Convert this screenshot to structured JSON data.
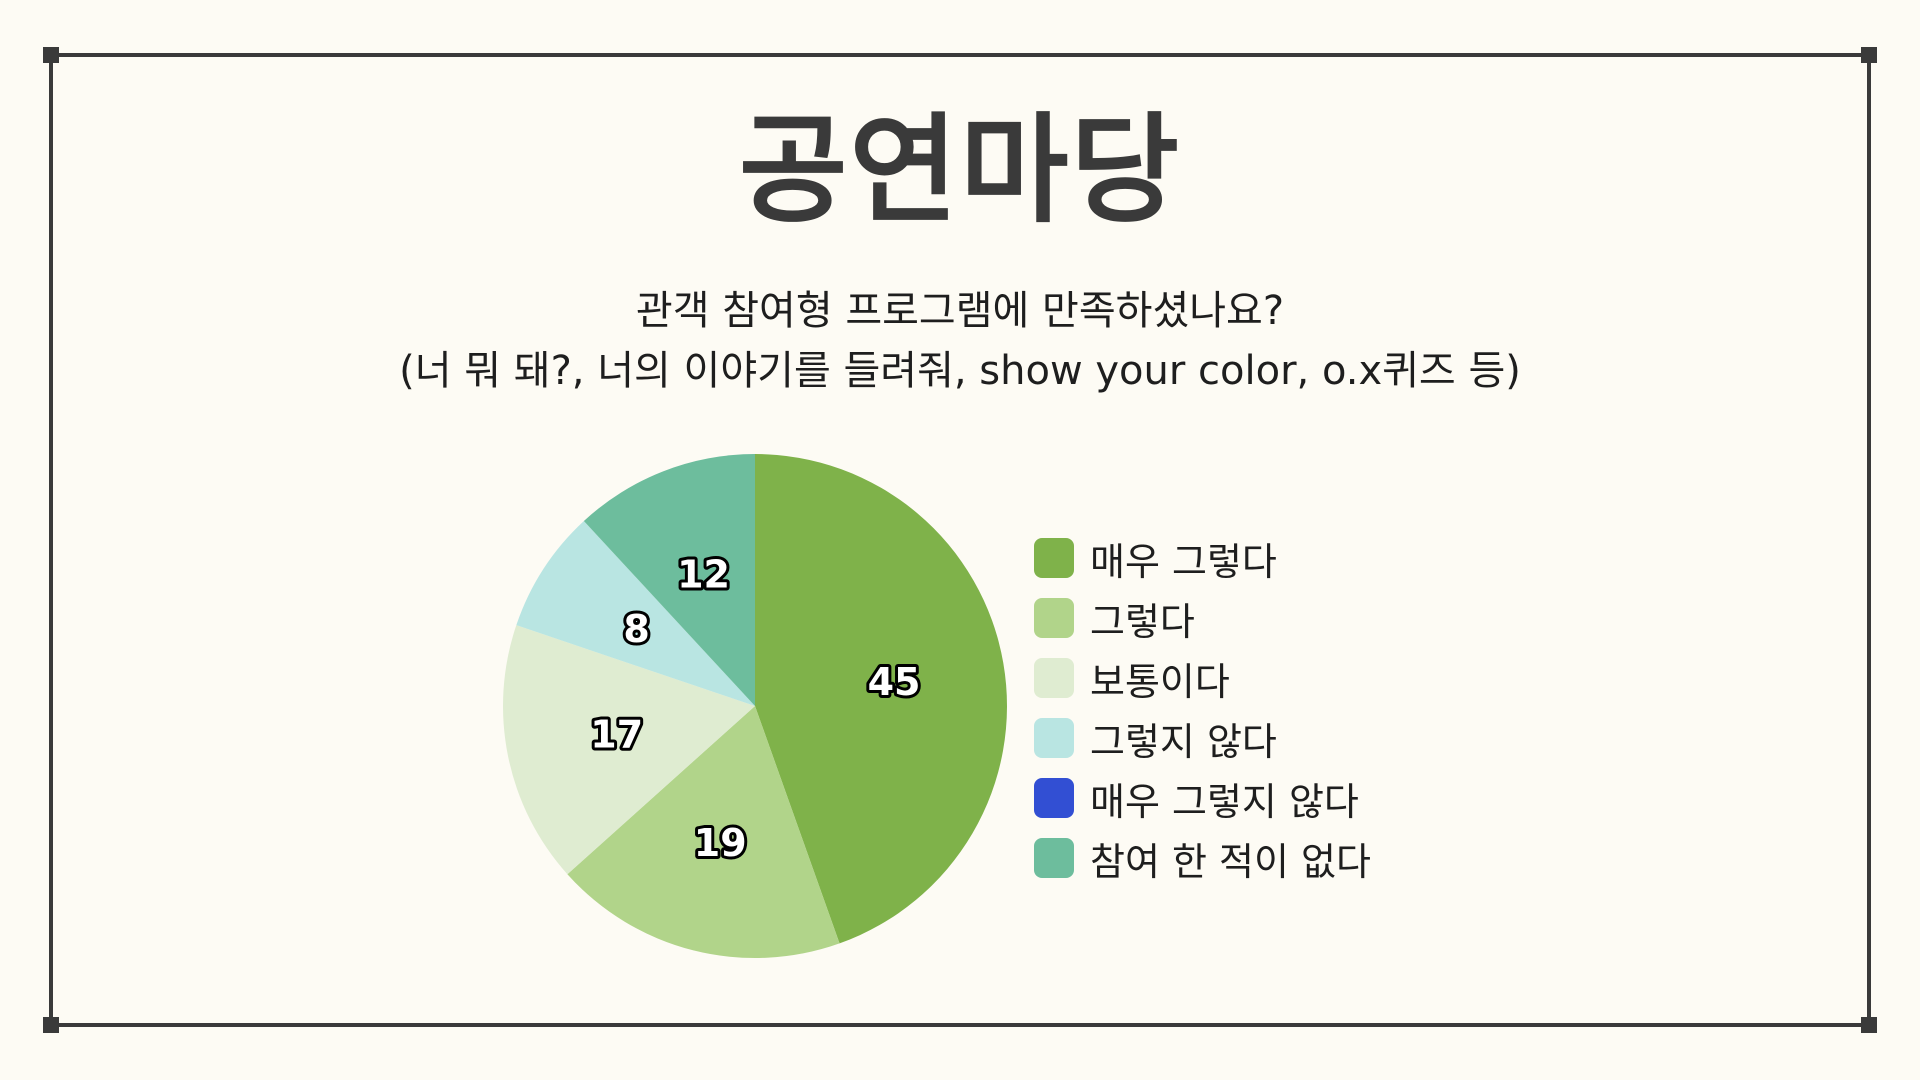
{
  "slide": {
    "title": "공연마당",
    "subtitle_line1": "관객 참여형 프로그램에 만족하셨나요?",
    "subtitle_line2": "(너 뭐 돼?, 너의 이야기를 들려줘, show your color, o.x퀴즈 등)"
  },
  "chart_data": {
    "type": "pie",
    "title": "",
    "categories": [
      "매우 그렇다",
      "그렇다",
      "보통이다",
      "그렇지 않다",
      "매우 그렇지 않다",
      "참여 한 적이 없다"
    ],
    "values": [
      45,
      19,
      17,
      8,
      0,
      12
    ],
    "colors": [
      "#7fb24a",
      "#b1d48a",
      "#dfecd1",
      "#b9e5e2",
      "#324fd3",
      "#6dbd9d"
    ],
    "data_labels": [
      "45",
      "19",
      "17",
      "8",
      "",
      "12"
    ],
    "start_angle": "12 o'clock",
    "direction": "clockwise",
    "legend_position": "right"
  }
}
